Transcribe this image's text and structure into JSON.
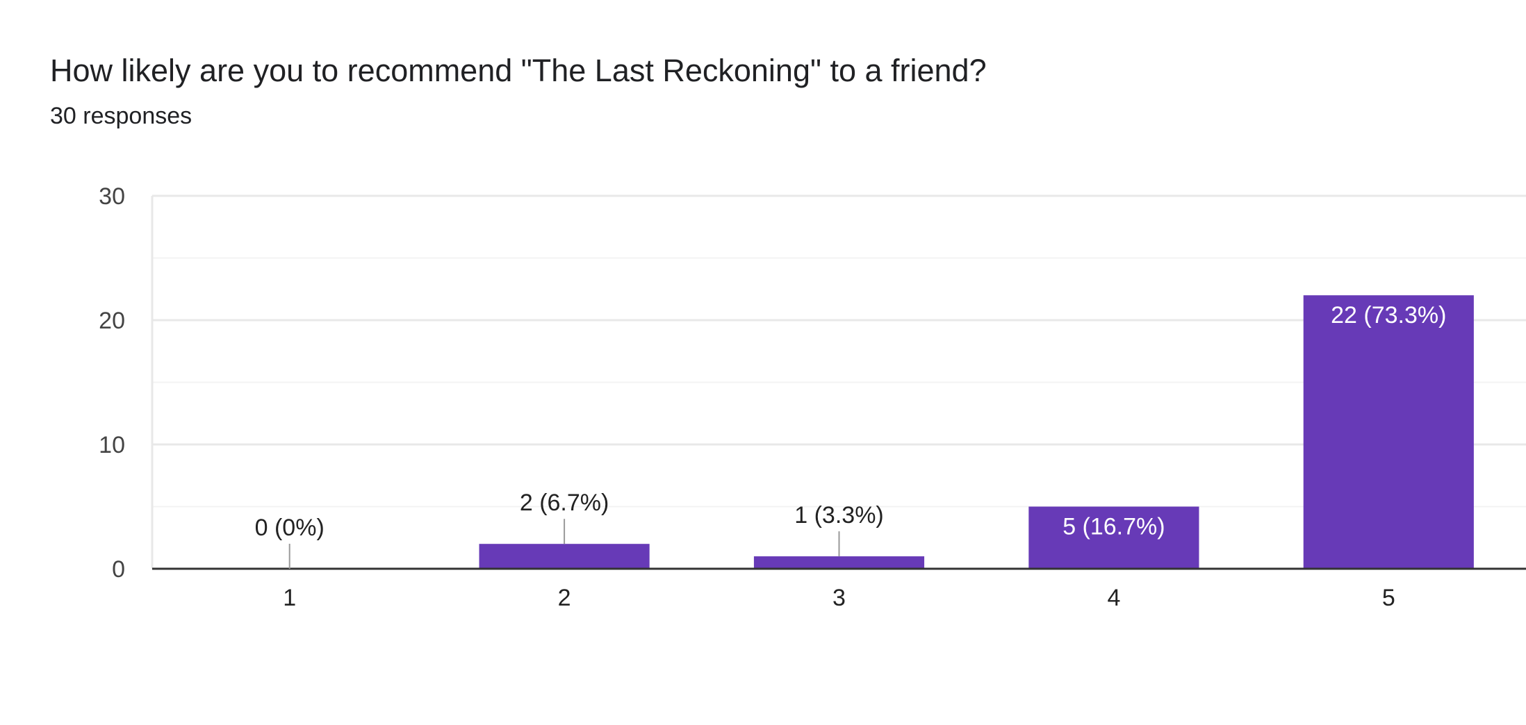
{
  "header": {
    "question": "How likely are you to recommend \"The Last Reckoning\" to a friend?",
    "responses": "30 responses"
  },
  "colors": {
    "bar": "#673ab7",
    "grid_major": "#e8e8e8",
    "grid_minor": "#f3f3f3",
    "axis": "#333333",
    "leader": "#999999"
  },
  "chart_data": {
    "type": "bar",
    "categories": [
      "1",
      "2",
      "3",
      "4",
      "5"
    ],
    "values": [
      0,
      2,
      1,
      5,
      22
    ],
    "data_labels": [
      "0 (0%)",
      "2 (6.7%)",
      "1 (3.3%)",
      "5 (16.7%)",
      "22 (73.3%)"
    ],
    "title": "How likely are you to recommend \"The Last Reckoning\" to a friend?",
    "subtitle": "30 responses",
    "xlabel": "",
    "ylabel": "",
    "ylim": [
      0,
      30
    ],
    "yticks": [
      "0",
      "10",
      "20",
      "30"
    ],
    "grid": true,
    "legend": "none"
  }
}
